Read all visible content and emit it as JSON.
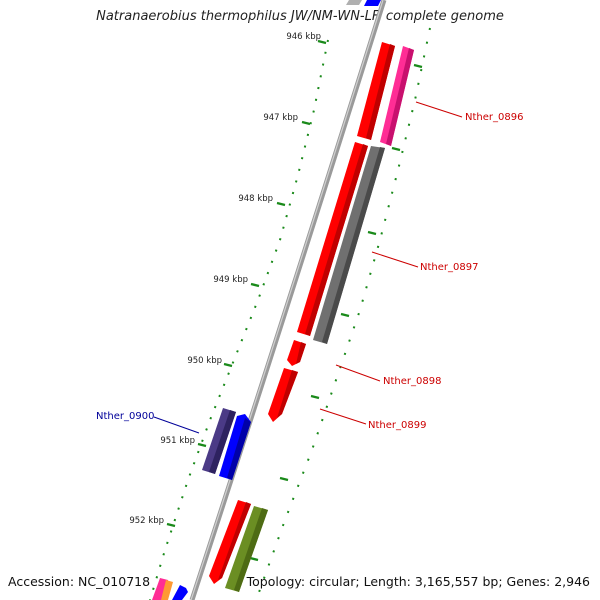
{
  "title": "Natranaerobius thermophilus JW/NM-WN-LF, complete genome",
  "footer": {
    "accession": "Accession: NC_010718",
    "topology": "Topology: circular; Length: 3,165,557 bp; Genes: 2,946"
  },
  "scale_ticks": [
    "946 kbp",
    "947 kbp",
    "948 kbp",
    "949 kbp",
    "950 kbp",
    "951 kbp",
    "952 kbp"
  ],
  "gene_labels": [
    {
      "text": "Nther_0896",
      "color": "#cc0000"
    },
    {
      "text": "Nther_0897",
      "color": "#cc0000"
    },
    {
      "text": "Nther_0898",
      "color": "#cc0000"
    },
    {
      "text": "Nther_0899",
      "color": "#cc0000"
    },
    {
      "text": "Nther_0900",
      "color": "#000099"
    }
  ],
  "colors": {
    "backbone": "#8c8c8c",
    "forward_cds": "#ff0000",
    "reverse_cds": "#0000ff",
    "pink_feature": "#ff2d95",
    "gray_feature": "#707070",
    "purple_feature": "#4b3a86",
    "olive_feature": "#6b8e23",
    "ticks": "#008000"
  }
}
